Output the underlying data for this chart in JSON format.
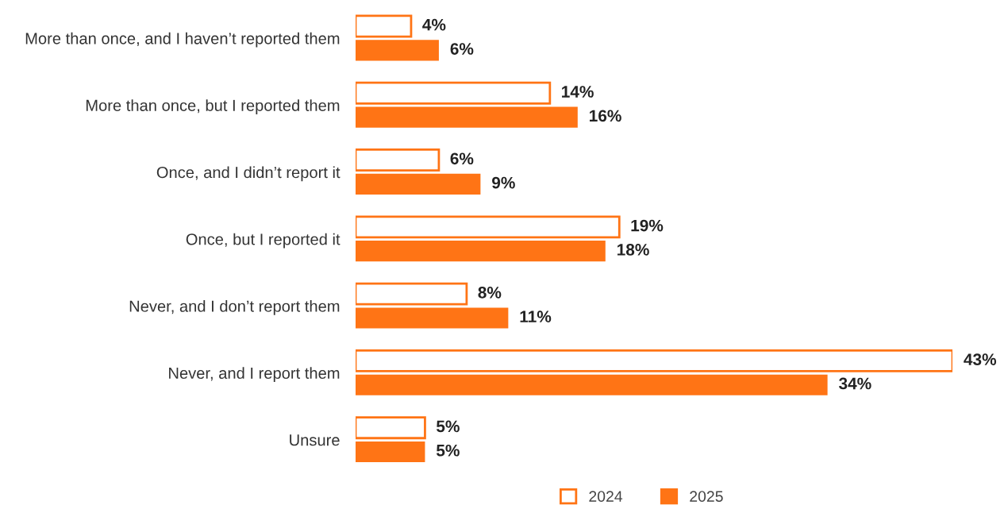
{
  "chart_data": {
    "type": "bar",
    "orientation": "horizontal",
    "legend": "bottom",
    "categories": [
      "More than once, and I haven’t reported them",
      "More than once, but I reported them",
      "Once, and I didn’t report it",
      "Once, but I reported it",
      "Never, and I don’t report them",
      "Never, and I report them",
      "Unsure"
    ],
    "series": [
      {
        "name": "2024",
        "color": "#ff7415",
        "values": [
          4,
          14,
          6,
          19,
          8,
          43,
          5
        ],
        "value_labels": [
          "4%",
          "14%",
          "6%",
          "19%",
          "8%",
          "43%",
          "5%"
        ]
      },
      {
        "name": "2025",
        "color": "#ff7415",
        "values": [
          6,
          16,
          9,
          18,
          11,
          34,
          5
        ],
        "value_labels": [
          "6%",
          "16%",
          "9%",
          "18%",
          "11%",
          "34%",
          "5%"
        ]
      }
    ]
  }
}
